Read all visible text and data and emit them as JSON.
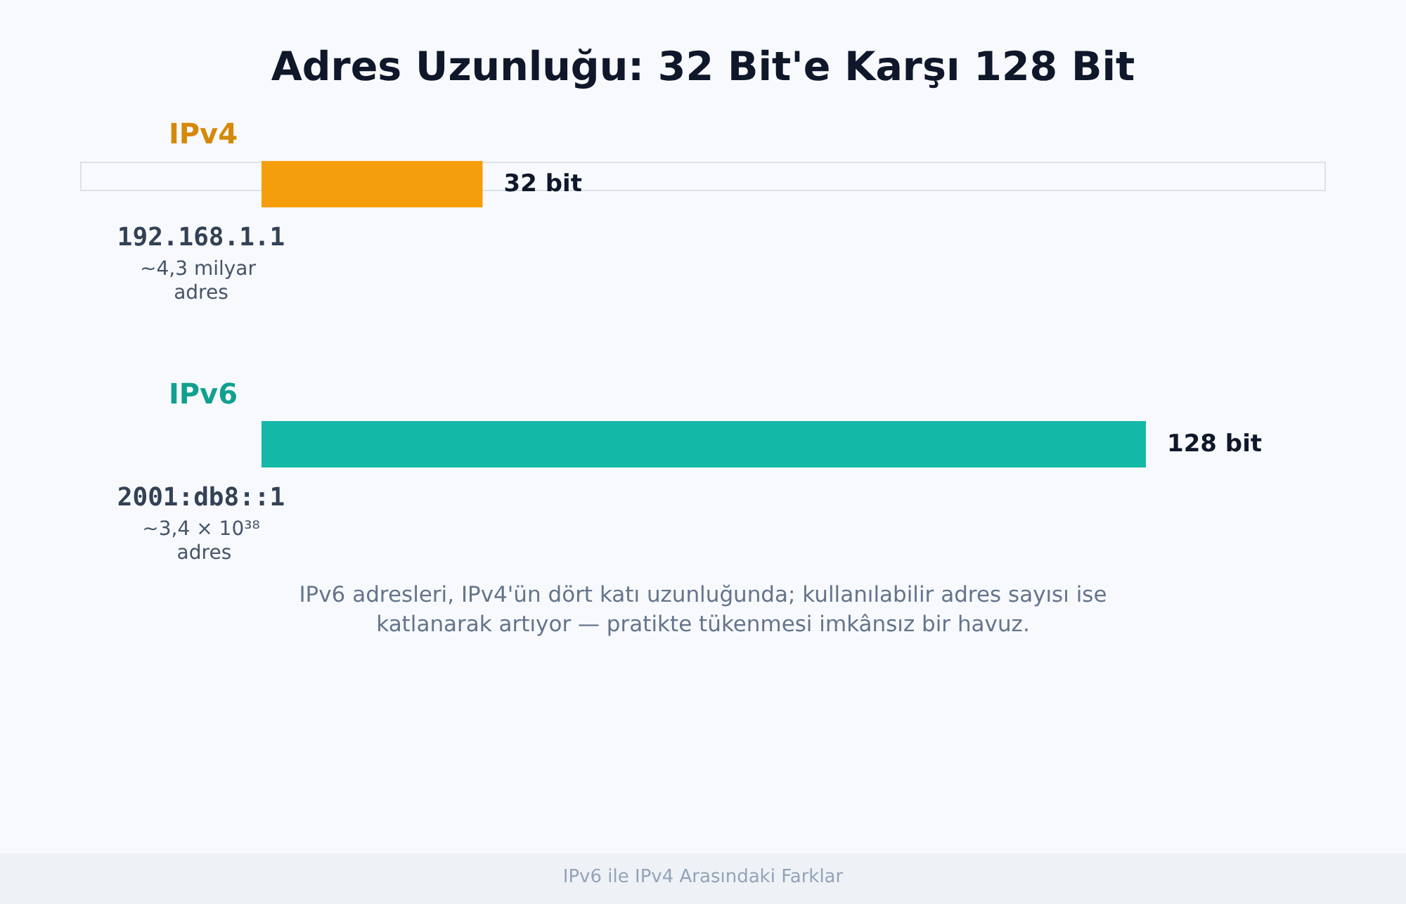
{
  "chart_data": {
    "type": "bar",
    "orientation": "horizontal",
    "title": "Adres Uzunluğu: 32 Bit'e Karşı 128 Bit",
    "categories": [
      "IPv4",
      "IPv6"
    ],
    "values": [
      32,
      128
    ],
    "colors": [
      "#f59e0b",
      "#14b8a6"
    ],
    "value_labels": [
      "32 bit",
      "128 bit"
    ],
    "annotations": [
      "192.168.1.1",
      "~4,3 milyar adres",
      "2001:db8::1",
      "~3,4 × 10³⁸ adres",
      "IPv6 adresleri, IPv4'ün dört katı uzunluğunda; kullanılabilir adres sayısı ise katlanarak artıyor — pratikte tükenmesi imkânsız bir havuz.",
      "IPv6 ile IPv4 Arasındaki Farklar"
    ]
  }
}
